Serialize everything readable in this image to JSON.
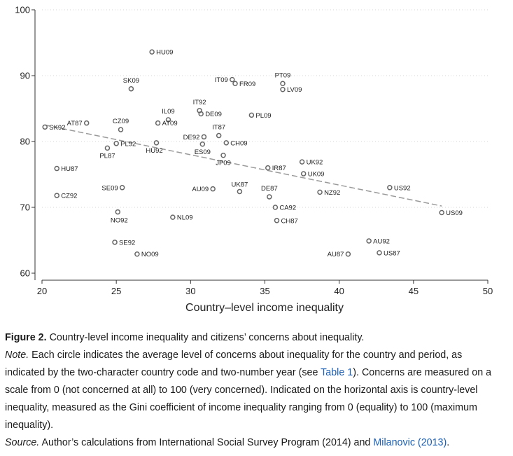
{
  "chart_data": {
    "type": "scatter",
    "xlabel": "Country–level income inequality",
    "ylabel": "",
    "xlim": [
      20,
      50
    ],
    "ylim": [
      60,
      100
    ],
    "x_ticks": [
      20,
      25,
      30,
      35,
      40,
      45,
      50
    ],
    "y_ticks": [
      60,
      70,
      80,
      90,
      100
    ],
    "grid": "horizontal dotted",
    "points": [
      {
        "label": "HU09",
        "x": 27.4,
        "y": 93.6
      },
      {
        "label": "IT09",
        "x": 32.8,
        "y": 89.4
      },
      {
        "label": "FR09",
        "x": 33.0,
        "y": 88.8
      },
      {
        "label": "PT09",
        "x": 36.2,
        "y": 88.8
      },
      {
        "label": "LV09",
        "x": 36.2,
        "y": 87.9
      },
      {
        "label": "SK09",
        "x": 26.0,
        "y": 88.0
      },
      {
        "label": "IT92",
        "x": 30.6,
        "y": 84.7
      },
      {
        "label": "DE09",
        "x": 30.7,
        "y": 84.2
      },
      {
        "label": "PL09",
        "x": 34.1,
        "y": 84.0
      },
      {
        "label": "IL09",
        "x": 28.5,
        "y": 83.3
      },
      {
        "label": "AT09",
        "x": 27.8,
        "y": 82.8
      },
      {
        "label": "AT87",
        "x": 23.0,
        "y": 82.8
      },
      {
        "label": "CZ09",
        "x": 25.3,
        "y": 81.8
      },
      {
        "label": "SK92",
        "x": 20.2,
        "y": 82.2
      },
      {
        "label": "IT87",
        "x": 31.9,
        "y": 80.9
      },
      {
        "label": "DE92",
        "x": 30.9,
        "y": 80.7
      },
      {
        "label": "CH09",
        "x": 32.4,
        "y": 79.8
      },
      {
        "label": "ES09",
        "x": 30.8,
        "y": 79.6
      },
      {
        "label": "PL92",
        "x": 25.0,
        "y": 79.7
      },
      {
        "label": "HU92",
        "x": 27.7,
        "y": 79.8
      },
      {
        "label": "PL87",
        "x": 24.4,
        "y": 79.0
      },
      {
        "label": "JP09",
        "x": 32.2,
        "y": 77.9
      },
      {
        "label": "UK92",
        "x": 37.5,
        "y": 76.9
      },
      {
        "label": "IR87",
        "x": 35.2,
        "y": 76.0
      },
      {
        "label": "UK09",
        "x": 37.6,
        "y": 75.1
      },
      {
        "label": "HU87",
        "x": 21.0,
        "y": 75.9
      },
      {
        "label": "SE09",
        "x": 25.4,
        "y": 73.0
      },
      {
        "label": "AU09",
        "x": 31.5,
        "y": 72.8
      },
      {
        "label": "UK87",
        "x": 33.3,
        "y": 72.4
      },
      {
        "label": "DE87",
        "x": 35.3,
        "y": 71.6
      },
      {
        "label": "NZ92",
        "x": 38.7,
        "y": 72.3
      },
      {
        "label": "US92",
        "x": 43.4,
        "y": 73.0
      },
      {
        "label": "CZ92",
        "x": 21.0,
        "y": 71.8
      },
      {
        "label": "US09",
        "x": 46.9,
        "y": 69.2
      },
      {
        "label": "CA92",
        "x": 35.7,
        "y": 70.0
      },
      {
        "label": "NO92",
        "x": 25.1,
        "y": 69.3
      },
      {
        "label": "NL09",
        "x": 28.8,
        "y": 68.5
      },
      {
        "label": "CH87",
        "x": 35.8,
        "y": 68.0
      },
      {
        "label": "AU92",
        "x": 42.0,
        "y": 64.9
      },
      {
        "label": "SE92",
        "x": 24.9,
        "y": 64.7
      },
      {
        "label": "NO09",
        "x": 26.4,
        "y": 62.9
      },
      {
        "label": "AU87",
        "x": 40.6,
        "y": 62.9
      },
      {
        "label": "US87",
        "x": 42.7,
        "y": 63.1
      }
    ],
    "trend_line": {
      "x": [
        20.2,
        46.9
      ],
      "y": [
        82.5,
        70.2
      ]
    },
    "marker_color": "#666666",
    "trend_color": "#9a9a9a"
  },
  "caption": {
    "figure_label": "Figure 2.",
    "figure_title": "Country-level income inequality and citizens’ concerns about inequality.",
    "note_label": "Note.",
    "note_before_link": "Each circle indicates the average level of concerns about inequality for the country and period, as indicated by the two-character country code and two-number year (see",
    "note_link": "Table 1",
    "note_after_link": "). Concerns are measured on a scale from 0 (not concerned at all) to 100 (very concerned). Indicated on the horizontal axis is country-level inequality, measured as the Gini coefficient of income inequality ranging from 0 (equality) to 100 (maximum inequality).",
    "source_label": "Source.",
    "source_before_link": "Author’s calculations from International Social Survey Program (2014) and",
    "source_link": "Milanovic (2013)",
    "source_after_link": ".",
    "link_color": "#1a5fb4"
  }
}
